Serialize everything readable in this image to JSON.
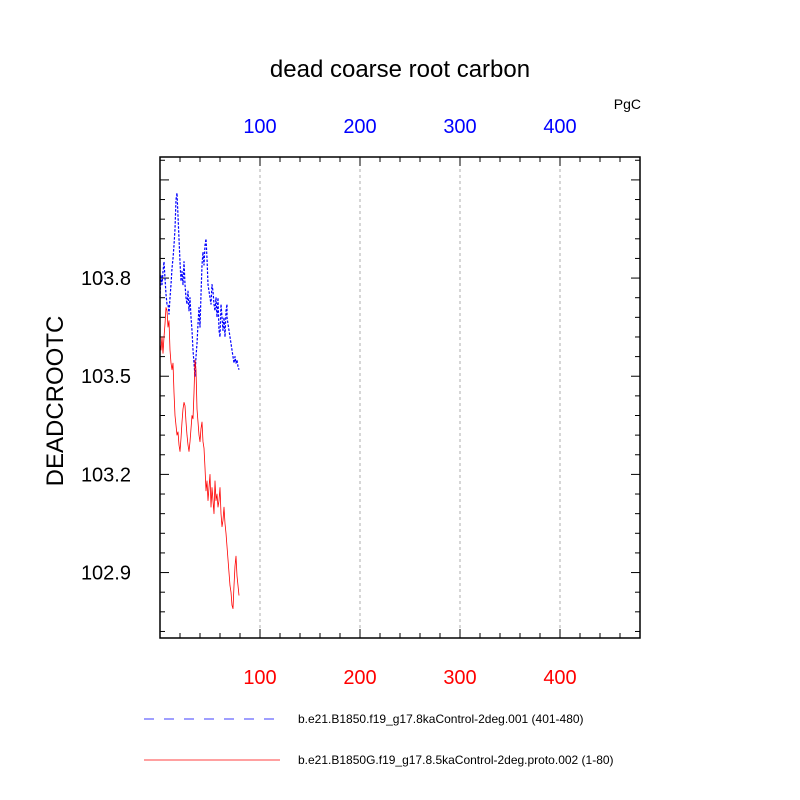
{
  "chart_data": {
    "type": "line",
    "title": "dead coarse root carbon",
    "ylabel": "DEADCROOTC",
    "units": "PgC",
    "xlim": [
      0,
      480
    ],
    "ylim": [
      102.7,
      104.17
    ],
    "x_ticks": [
      100,
      200,
      300,
      400
    ],
    "x_ticks_labels": [
      "100",
      "200",
      "300",
      "400"
    ],
    "y_ticks": [
      102.9,
      103.2,
      103.5,
      103.8
    ],
    "y_ticks_labels": [
      "102.9",
      "103.2",
      "103.5",
      "103.8"
    ],
    "grid": "vertical dashed at x ticks",
    "legend_position": "bottom",
    "colors": {
      "top_axis": "#0000ff",
      "bottom_axis": "#ff0000"
    },
    "series": [
      {
        "name": "b.e21.B1850.f19_g17.8kaControl-2deg.001 (401-480)",
        "color": "#0000ff",
        "dash": "dashed",
        "axis": "top",
        "x": [
          0,
          1,
          2,
          3,
          4,
          5,
          6,
          7,
          8,
          9,
          10,
          11,
          12,
          13,
          14,
          15,
          16,
          17,
          18,
          19,
          20,
          21,
          22,
          23,
          24,
          25,
          26,
          27,
          28,
          29,
          30,
          31,
          32,
          33,
          34,
          35,
          36,
          37,
          38,
          39,
          40,
          41,
          42,
          43,
          44,
          45,
          46,
          47,
          48,
          49,
          50,
          51,
          52,
          53,
          54,
          55,
          56,
          57,
          58,
          59,
          60,
          61,
          62,
          63,
          64,
          65,
          66,
          67,
          67,
          68,
          69,
          70,
          71,
          72,
          73,
          74,
          75,
          76,
          77,
          78,
          79
        ],
        "y": [
          103.74,
          103.81,
          103.78,
          103.82,
          103.85,
          103.8,
          103.75,
          103.72,
          103.72,
          103.69,
          103.74,
          103.78,
          103.83,
          103.86,
          103.9,
          103.95,
          104.04,
          104.06,
          103.99,
          103.92,
          103.85,
          103.79,
          103.82,
          103.78,
          103.85,
          103.78,
          103.74,
          103.72,
          103.76,
          103.7,
          103.74,
          103.68,
          103.64,
          103.58,
          103.54,
          103.5,
          103.56,
          103.6,
          103.66,
          103.71,
          103.65,
          103.75,
          103.84,
          103.88,
          103.84,
          103.9,
          103.92,
          103.86,
          103.78,
          103.76,
          103.74,
          103.72,
          103.78,
          103.76,
          103.72,
          103.7,
          103.74,
          103.68,
          103.74,
          103.64,
          103.62,
          103.72,
          103.68,
          103.64,
          103.68,
          103.62,
          103.7,
          103.72,
          103.68,
          103.66,
          103.64,
          103.62,
          103.6,
          103.58,
          103.56,
          103.54,
          103.56,
          103.54,
          103.55,
          103.53,
          103.52
        ]
      },
      {
        "name": "b.e21.B1850G.f19_g17.8.5kaControl-2deg.proto.002 (1-80)",
        "color": "#ff0000",
        "dash": "solid",
        "axis": "bottom",
        "x": [
          0,
          1,
          2,
          3,
          4,
          5,
          6,
          7,
          8,
          9,
          10,
          11,
          12,
          13,
          14,
          15,
          16,
          17,
          18,
          19,
          20,
          21,
          22,
          23,
          24,
          25,
          26,
          27,
          28,
          29,
          30,
          31,
          32,
          33,
          34,
          35,
          36,
          37,
          38,
          39,
          40,
          41,
          42,
          43,
          44,
          45,
          46,
          47,
          48,
          49,
          50,
          51,
          52,
          53,
          54,
          55,
          56,
          57,
          58,
          59,
          60,
          61,
          62,
          63,
          64,
          65,
          66,
          67,
          68,
          69,
          70,
          71,
          72,
          73,
          74,
          75,
          76,
          77,
          78,
          79
        ],
        "y": [
          103.6,
          103.58,
          103.62,
          103.57,
          103.62,
          103.66,
          103.71,
          103.7,
          103.65,
          103.67,
          103.58,
          103.54,
          103.52,
          103.54,
          103.45,
          103.38,
          103.35,
          103.32,
          103.33,
          103.29,
          103.27,
          103.31,
          103.36,
          103.4,
          103.42,
          103.41,
          103.36,
          103.32,
          103.29,
          103.27,
          103.3,
          103.34,
          103.38,
          103.37,
          103.45,
          103.55,
          103.52,
          103.4,
          103.36,
          103.32,
          103.3,
          103.34,
          103.36,
          103.3,
          103.28,
          103.22,
          103.15,
          103.18,
          103.12,
          103.16,
          103.2,
          103.1,
          103.16,
          103.12,
          103.08,
          103.18,
          103.12,
          103.14,
          103.1,
          103.12,
          103.16,
          103.08,
          103.04,
          103.06,
          103.1,
          103.05,
          103.02,
          102.98,
          102.94,
          102.9,
          102.86,
          102.84,
          102.8,
          102.79,
          102.86,
          102.92,
          102.95,
          102.89,
          102.86,
          102.83
        ]
      }
    ]
  }
}
